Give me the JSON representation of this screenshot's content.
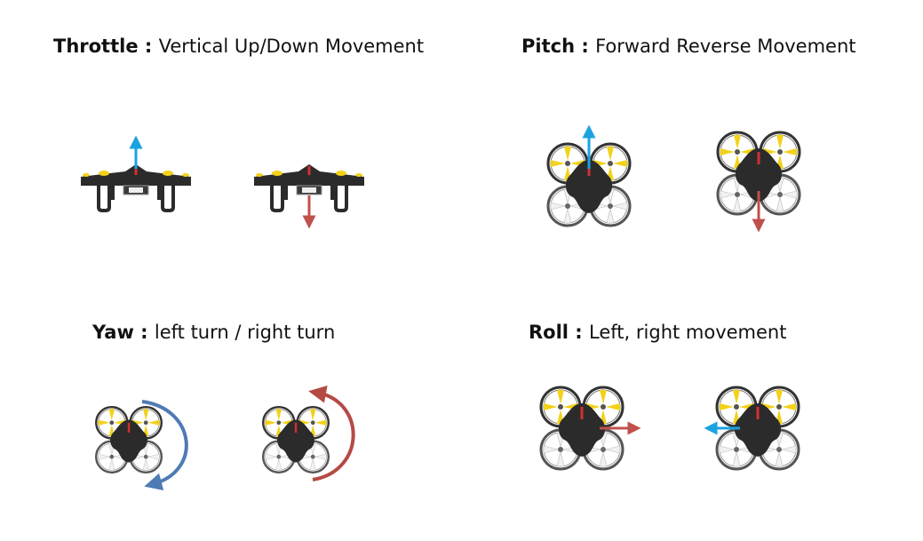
{
  "colors": {
    "up_arrow": "#1aa3e0",
    "down_arrow": "#c0504d",
    "yaw_left": "#4f7bb5",
    "yaw_right": "#b54a45",
    "prop_yellow": "#f2d21b",
    "prop_white": "#f2f2f2",
    "body": "#2b2b2b",
    "nose": "#d32f2f"
  },
  "captions": {
    "throttle": {
      "term": "Throttle",
      "sep": " : ",
      "desc": "Vertical Up/Down Movement"
    },
    "pitch": {
      "term": "Pitch",
      "sep": " : ",
      "desc": "Forward Reverse Movement"
    },
    "yaw": {
      "term": "Yaw",
      "sep": " : ",
      "desc": "left turn / right turn"
    },
    "roll": {
      "term": "Roll",
      "sep": " : ",
      "desc": "Left, right movement"
    }
  },
  "figures": [
    {
      "icon": "drone-side-icon",
      "control": "throttle",
      "direction": "up",
      "arrow_color": "#1aa3e0"
    },
    {
      "icon": "drone-side-icon",
      "control": "throttle",
      "direction": "down",
      "arrow_color": "#c0504d"
    },
    {
      "icon": "drone-top-icon",
      "control": "pitch",
      "direction": "forward",
      "arrow_color": "#1aa3e0"
    },
    {
      "icon": "drone-top-icon",
      "control": "pitch",
      "direction": "reverse",
      "arrow_color": "#c0504d"
    },
    {
      "icon": "drone-top-icon",
      "control": "yaw",
      "direction": "left-turn",
      "arrow_color": "#4f7bb5"
    },
    {
      "icon": "drone-top-icon",
      "control": "yaw",
      "direction": "right-turn",
      "arrow_color": "#b54a45"
    },
    {
      "icon": "drone-top-icon",
      "control": "roll",
      "direction": "right",
      "arrow_color": "#c0504d"
    },
    {
      "icon": "drone-top-icon",
      "control": "roll",
      "direction": "left",
      "arrow_color": "#1aa3e0"
    }
  ]
}
